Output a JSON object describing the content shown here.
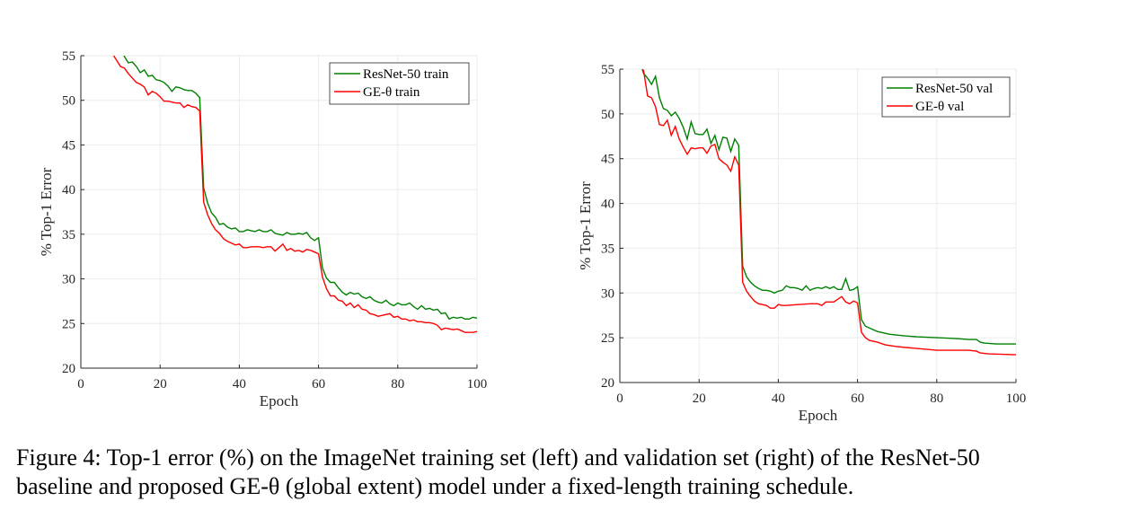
{
  "chart_data": [
    {
      "type": "line",
      "xlabel": "Epoch",
      "ylabel": "% Top-1 Error",
      "xlim": [
        0,
        100
      ],
      "ylim": [
        20,
        55
      ],
      "xticks": [
        0,
        20,
        40,
        60,
        80,
        100
      ],
      "yticks": [
        20,
        25,
        30,
        35,
        40,
        45,
        50,
        55
      ],
      "grid": true,
      "legend_position": "top-right",
      "series": [
        {
          "name": "ResNet-50 train",
          "color": "#008000",
          "x": [
            10,
            11,
            12,
            13,
            14,
            15,
            16,
            17,
            18,
            19,
            20,
            21,
            22,
            23,
            24,
            25,
            26,
            27,
            28,
            29,
            30,
            31,
            32,
            33,
            34,
            35,
            36,
            37,
            38,
            39,
            40,
            41,
            42,
            43,
            44,
            45,
            46,
            47,
            48,
            49,
            50,
            51,
            52,
            53,
            54,
            55,
            56,
            57,
            58,
            59,
            60,
            61,
            62,
            63,
            64,
            65,
            66,
            67,
            68,
            69,
            70,
            71,
            72,
            73,
            74,
            75,
            76,
            77,
            78,
            79,
            80,
            81,
            82,
            83,
            84,
            85,
            86,
            87,
            88,
            89,
            90,
            91,
            92,
            93,
            94,
            95,
            96,
            97,
            98,
            99,
            100
          ],
          "y": [
            56,
            54.9,
            54.2,
            54.3,
            53.8,
            53.1,
            53.4,
            52.7,
            52.8,
            52.3,
            52.2,
            52.0,
            51.6,
            51.0,
            51.5,
            51.4,
            51.2,
            51.1,
            51.1,
            50.8,
            50.3,
            40.2,
            38.5,
            37.4,
            36.9,
            36.1,
            36.2,
            35.8,
            35.6,
            35.7,
            35.3,
            35.3,
            35.5,
            35.4,
            35.3,
            35.5,
            35.3,
            35.3,
            35.5,
            35.1,
            35.0,
            34.9,
            35.2,
            35.0,
            35.0,
            35.1,
            35.0,
            35.2,
            34.6,
            34.3,
            34.6,
            31.2,
            30.1,
            29.6,
            29.6,
            29.0,
            28.5,
            28.2,
            28.5,
            28.3,
            28.4,
            28.0,
            27.8,
            28.0,
            27.6,
            27.4,
            27.3,
            27.6,
            27.2,
            27.0,
            27.3,
            27.1,
            27.1,
            27.3,
            26.9,
            26.6,
            27.0,
            26.6,
            26.7,
            26.5,
            26.6,
            26.1,
            26.2,
            25.5,
            25.7,
            25.6,
            25.7,
            25.5,
            25.5,
            25.7,
            25.6
          ]
        },
        {
          "name": "GE-θ train",
          "color": "#ff0000",
          "x": [
            8,
            9,
            10,
            11,
            12,
            13,
            14,
            15,
            16,
            17,
            18,
            19,
            20,
            21,
            22,
            23,
            24,
            25,
            26,
            27,
            28,
            29,
            30,
            31,
            32,
            33,
            34,
            35,
            36,
            37,
            38,
            39,
            40,
            41,
            42,
            43,
            44,
            45,
            46,
            47,
            48,
            49,
            50,
            51,
            52,
            53,
            54,
            55,
            56,
            57,
            58,
            59,
            60,
            61,
            62,
            63,
            64,
            65,
            66,
            67,
            68,
            69,
            70,
            71,
            72,
            73,
            74,
            75,
            76,
            77,
            78,
            79,
            80,
            81,
            82,
            83,
            84,
            85,
            86,
            87,
            88,
            89,
            90,
            91,
            92,
            93,
            94,
            95,
            96,
            97,
            98,
            99,
            100
          ],
          "y": [
            55.2,
            54.5,
            53.8,
            53.6,
            53.0,
            52.5,
            52.0,
            51.8,
            51.5,
            50.6,
            51.0,
            50.8,
            50.4,
            49.9,
            49.9,
            49.8,
            49.7,
            49.7,
            49.2,
            49.5,
            49.3,
            49.2,
            48.8,
            38.6,
            37.2,
            36.2,
            35.5,
            35.1,
            34.5,
            34.2,
            34.0,
            33.8,
            33.9,
            33.5,
            33.5,
            33.6,
            33.6,
            33.6,
            33.5,
            33.6,
            33.6,
            33.1,
            33.5,
            33.9,
            33.2,
            33.4,
            33.1,
            33.2,
            33.0,
            33.3,
            33.2,
            33.0,
            32.8,
            30.2,
            28.9,
            28.1,
            28.1,
            27.6,
            27.5,
            27.0,
            27.3,
            26.8,
            27.1,
            26.6,
            26.5,
            26.1,
            26.0,
            25.8,
            25.9,
            26.0,
            26.1,
            25.7,
            25.8,
            25.5,
            25.5,
            25.3,
            25.4,
            25.2,
            25.2,
            25.1,
            25.1,
            25.0,
            24.8,
            24.3,
            24.5,
            24.4,
            24.3,
            24.4,
            24.2,
            24.0,
            24.0,
            24.0,
            24.1
          ]
        }
      ]
    },
    {
      "type": "line",
      "xlabel": "Epoch",
      "ylabel": "% Top-1 Error",
      "xlim": [
        0,
        100
      ],
      "ylim": [
        20,
        55
      ],
      "xticks": [
        0,
        20,
        40,
        60,
        80,
        100
      ],
      "yticks": [
        20,
        25,
        30,
        35,
        40,
        45,
        50,
        55
      ],
      "grid": true,
      "legend_position": "top-right",
      "series": [
        {
          "name": "ResNet-50 val",
          "color": "#008000",
          "x": [
            5,
            6,
            7,
            8,
            9,
            10,
            11,
            12,
            13,
            14,
            15,
            16,
            17,
            18,
            19,
            20,
            21,
            22,
            23,
            24,
            25,
            26,
            27,
            28,
            29,
            30,
            31,
            32,
            33,
            34,
            35,
            36,
            37,
            38,
            39,
            40,
            41,
            42,
            43,
            44,
            45,
            46,
            47,
            48,
            49,
            50,
            51,
            52,
            53,
            54,
            55,
            56,
            57,
            58,
            59,
            60,
            61,
            62,
            63,
            64,
            65,
            66,
            67,
            68,
            70,
            72,
            75,
            80,
            85,
            88,
            90,
            91,
            92,
            95,
            100
          ],
          "y": [
            56,
            54.5,
            54.0,
            53.3,
            54.2,
            51.8,
            50.6,
            50.4,
            49.8,
            50.2,
            49.5,
            48.5,
            47.2,
            49.1,
            47.8,
            47.7,
            47.7,
            48.3,
            46.7,
            47.6,
            46.0,
            47.4,
            47.3,
            45.8,
            47.2,
            46.5,
            33.0,
            31.8,
            31.2,
            30.8,
            30.5,
            30.3,
            30.3,
            30.2,
            30.0,
            30.2,
            30.3,
            30.8,
            30.6,
            30.6,
            30.5,
            30.3,
            30.8,
            30.3,
            30.5,
            30.6,
            30.5,
            30.7,
            30.5,
            30.7,
            30.4,
            30.4,
            31.6,
            30.3,
            30.4,
            30.7,
            27.0,
            26.3,
            26.1,
            25.9,
            25.7,
            25.6,
            25.5,
            25.4,
            25.3,
            25.2,
            25.1,
            25.0,
            24.9,
            24.8,
            24.8,
            24.5,
            24.4,
            24.3,
            24.3
          ]
        },
        {
          "name": "GE-θ val",
          "color": "#ff0000",
          "x": [
            5,
            6,
            7,
            8,
            9,
            10,
            11,
            12,
            13,
            14,
            15,
            16,
            17,
            18,
            19,
            20,
            21,
            22,
            23,
            24,
            25,
            26,
            27,
            28,
            29,
            30,
            31,
            32,
            33,
            34,
            35,
            36,
            37,
            38,
            39,
            40,
            41,
            42,
            45,
            48,
            50,
            51,
            52,
            54,
            55,
            56,
            57,
            58,
            59,
            60,
            61,
            62,
            63,
            65,
            67,
            70,
            75,
            80,
            85,
            88,
            90,
            91,
            93,
            100
          ],
          "y": [
            55.5,
            54.8,
            52.0,
            51.8,
            50.8,
            48.8,
            48.7,
            49.3,
            47.6,
            48.6,
            47.2,
            46.3,
            45.5,
            46.2,
            46.1,
            46.2,
            46.2,
            45.6,
            46.4,
            46.6,
            45.0,
            44.6,
            44.3,
            43.6,
            45.2,
            44.3,
            31.2,
            30.2,
            29.6,
            29.1,
            28.8,
            28.7,
            28.6,
            28.3,
            28.3,
            28.7,
            28.6,
            28.6,
            28.7,
            28.8,
            28.8,
            28.6,
            29.0,
            29.0,
            29.3,
            29.6,
            29.0,
            28.8,
            29.1,
            28.9,
            25.6,
            25.0,
            24.7,
            24.5,
            24.2,
            24.0,
            23.8,
            23.6,
            23.6,
            23.6,
            23.5,
            23.3,
            23.2,
            23.1
          ]
        }
      ]
    }
  ],
  "caption": {
    "line1": "Figure 4: Top-1 error (%) on the ImageNet training set (left) and validation set (right) of the ResNet-50",
    "line2": "baseline and proposed GE-θ (global extent) model under a fixed-length training schedule."
  }
}
